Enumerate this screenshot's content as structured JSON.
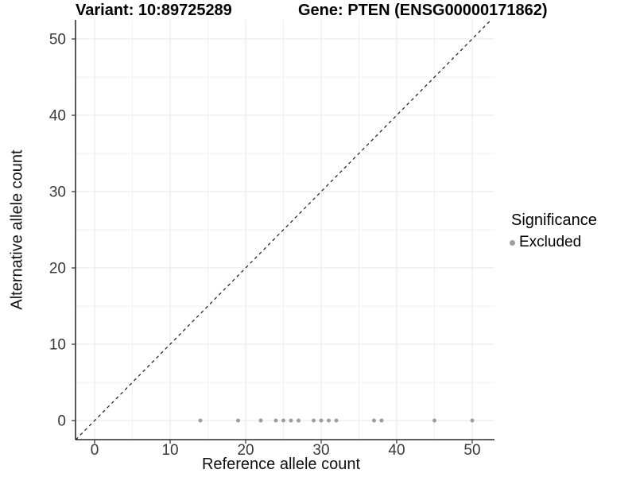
{
  "chart_data": {
    "type": "scatter",
    "title_left": "Variant: 10:89725289",
    "title_right": "Gene: PTEN (ENSG00000171862)",
    "xlabel": "Reference allele count",
    "ylabel": "Alternative allele count",
    "xlim": [
      -2.53,
      52.95
    ],
    "ylim": [
      -2.5,
      52.5
    ],
    "xticks": [
      0,
      10,
      20,
      30,
      40,
      50
    ],
    "yticks": [
      0,
      10,
      20,
      30,
      40,
      50
    ],
    "grid": "major+minor",
    "identity_line": {
      "style": "dashed",
      "slope": 1,
      "intercept": 0,
      "color": "#1a1a1a"
    },
    "series": [
      {
        "name": "Excluded",
        "color": "#9e9e9e",
        "points": [
          [
            14,
            0
          ],
          [
            19,
            0
          ],
          [
            22,
            0
          ],
          [
            24,
            0
          ],
          [
            25,
            0
          ],
          [
            26,
            0
          ],
          [
            27,
            0
          ],
          [
            29,
            0
          ],
          [
            30,
            0
          ],
          [
            31,
            0
          ],
          [
            32,
            0
          ],
          [
            37,
            0
          ],
          [
            38,
            0
          ],
          [
            45,
            0
          ],
          [
            50,
            0
          ]
        ]
      }
    ],
    "legend": {
      "title": "Significance",
      "position": "right",
      "items": [
        {
          "label": "Excluded",
          "color": "#9e9e9e"
        }
      ]
    },
    "colors": {
      "major_grid": "#e7e7e7",
      "minor_grid": "#f1f1f1",
      "axis_line": "#000000",
      "tick_mark": "#333333",
      "tick_label": "#383838"
    }
  }
}
